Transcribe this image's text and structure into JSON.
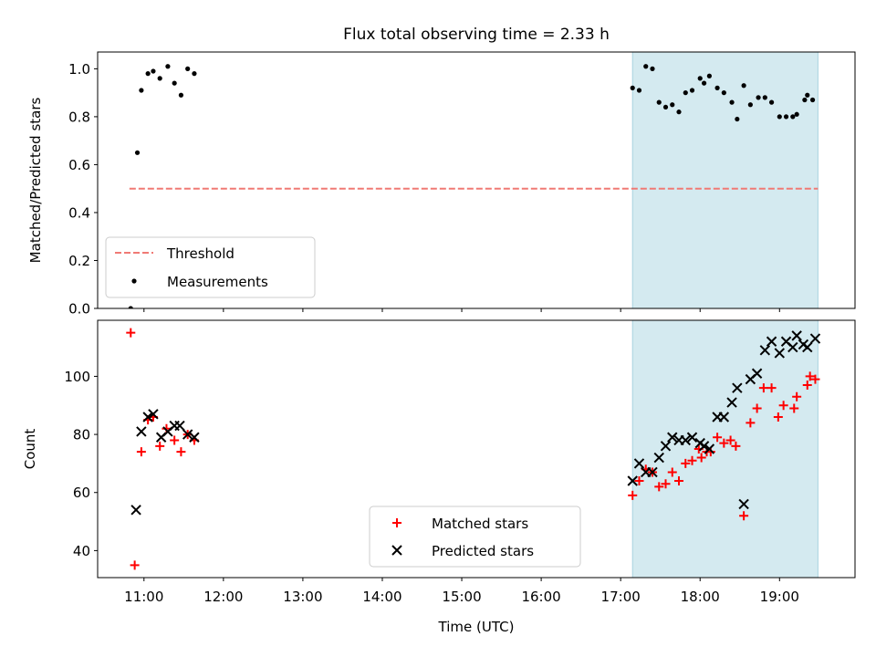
{
  "title": "Flux total observing time = 2.33 h",
  "chart_data": [
    {
      "type": "scatter",
      "ylabel": "Matched/Predicted stars",
      "ylim": [
        0,
        1.07
      ],
      "xlim": [
        "10:25",
        "19:57"
      ],
      "y_ticks": [
        0.0,
        0.2,
        0.4,
        0.6,
        0.8,
        1.0
      ],
      "y_tick_labels": [
        "0.0",
        "0.2",
        "0.4",
        "0.6",
        "0.8",
        "1.0"
      ],
      "highlight_span": {
        "x": [
          "17:09",
          "19:29"
        ],
        "color": "#d4eaf0"
      },
      "threshold": {
        "name": "Threshold",
        "y": 0.5,
        "x": [
          "10:49",
          "19:29"
        ],
        "color": "#f07a75",
        "style": "dashed"
      },
      "legend": {
        "position": "lower left",
        "entries": [
          "Threshold",
          "Measurements"
        ]
      },
      "series": [
        {
          "name": "Measurements",
          "marker": "dot",
          "color": "#000000",
          "points": [
            [
              "10:50",
              0.0
            ],
            [
              "10:55",
              0.65
            ],
            [
              "10:58",
              0.91
            ],
            [
              "11:03",
              0.98
            ],
            [
              "11:07",
              0.99
            ],
            [
              "11:12",
              0.96
            ],
            [
              "11:18",
              1.01
            ],
            [
              "11:23",
              0.94
            ],
            [
              "11:28",
              0.89
            ],
            [
              "11:33",
              1.0
            ],
            [
              "11:38",
              0.98
            ],
            [
              "17:09",
              0.92
            ],
            [
              "17:14",
              0.91
            ],
            [
              "17:19",
              1.01
            ],
            [
              "17:24",
              1.0
            ],
            [
              "17:29",
              0.86
            ],
            [
              "17:34",
              0.84
            ],
            [
              "17:39",
              0.85
            ],
            [
              "17:44",
              0.82
            ],
            [
              "17:49",
              0.9
            ],
            [
              "17:54",
              0.91
            ],
            [
              "18:00",
              0.96
            ],
            [
              "18:03",
              0.94
            ],
            [
              "18:07",
              0.97
            ],
            [
              "18:13",
              0.92
            ],
            [
              "18:18",
              0.9
            ],
            [
              "18:24",
              0.86
            ],
            [
              "18:28",
              0.79
            ],
            [
              "18:33",
              0.93
            ],
            [
              "18:38",
              0.85
            ],
            [
              "18:44",
              0.88
            ],
            [
              "18:49",
              0.88
            ],
            [
              "18:54",
              0.86
            ],
            [
              "19:00",
              0.8
            ],
            [
              "19:05",
              0.8
            ],
            [
              "19:10",
              0.8
            ],
            [
              "19:13",
              0.81
            ],
            [
              "19:19",
              0.87
            ],
            [
              "19:21",
              0.89
            ],
            [
              "19:25",
              0.87
            ]
          ]
        }
      ]
    },
    {
      "type": "scatter",
      "xlabel": "Time (UTC)",
      "ylabel": "Count",
      "ylim": [
        30.7,
        119.3
      ],
      "xlim": [
        "10:25",
        "19:57"
      ],
      "x_ticks": [
        "11:00",
        "12:00",
        "13:00",
        "14:00",
        "15:00",
        "16:00",
        "17:00",
        "18:00",
        "19:00"
      ],
      "y_ticks": [
        40,
        60,
        80,
        100
      ],
      "highlight_span": {
        "x": [
          "17:09",
          "19:29"
        ],
        "color": "#d4eaf0"
      },
      "legend": {
        "position": "lower center",
        "entries": [
          "Matched stars",
          "Predicted stars"
        ]
      },
      "series": [
        {
          "name": "Matched stars",
          "marker": "plus",
          "color": "#ff0000",
          "points": [
            [
              "10:50",
              115
            ],
            [
              "10:53",
              35
            ],
            [
              "10:58",
              74
            ],
            [
              "11:03",
              85
            ],
            [
              "11:07",
              86
            ],
            [
              "11:12",
              76
            ],
            [
              "11:17",
              82
            ],
            [
              "11:23",
              78
            ],
            [
              "11:28",
              74
            ],
            [
              "11:33",
              80
            ],
            [
              "11:38",
              78
            ],
            [
              "17:09",
              59
            ],
            [
              "17:14",
              64
            ],
            [
              "17:19",
              68
            ],
            [
              "17:24",
              67
            ],
            [
              "17:29",
              62
            ],
            [
              "17:34",
              63
            ],
            [
              "17:39",
              67
            ],
            [
              "17:44",
              64
            ],
            [
              "17:49",
              70
            ],
            [
              "17:54",
              71
            ],
            [
              "17:59",
              75
            ],
            [
              "18:01",
              72
            ],
            [
              "18:05",
              74
            ],
            [
              "18:08",
              74
            ],
            [
              "18:13",
              79
            ],
            [
              "18:18",
              77
            ],
            [
              "18:23",
              78
            ],
            [
              "18:27",
              76
            ],
            [
              "18:33",
              52
            ],
            [
              "18:38",
              84
            ],
            [
              "18:43",
              89
            ],
            [
              "18:48",
              96
            ],
            [
              "18:54",
              96
            ],
            [
              "18:59",
              86
            ],
            [
              "19:03",
              90
            ],
            [
              "19:11",
              89
            ],
            [
              "19:13",
              93
            ],
            [
              "19:21",
              97
            ],
            [
              "19:23",
              100
            ],
            [
              "19:27",
              99
            ]
          ]
        },
        {
          "name": "Predicted stars",
          "marker": "x",
          "color": "#000000",
          "points": [
            [
              "10:54",
              54
            ],
            [
              "10:58",
              81
            ],
            [
              "11:03",
              86
            ],
            [
              "11:07",
              87
            ],
            [
              "11:13",
              79
            ],
            [
              "11:18",
              81
            ],
            [
              "11:23",
              83
            ],
            [
              "11:27",
              83
            ],
            [
              "11:33",
              80
            ],
            [
              "11:38",
              79
            ],
            [
              "17:09",
              64
            ],
            [
              "17:14",
              70
            ],
            [
              "17:19",
              67
            ],
            [
              "17:24",
              67
            ],
            [
              "17:29",
              72
            ],
            [
              "17:34",
              76
            ],
            [
              "17:39",
              79
            ],
            [
              "17:44",
              78
            ],
            [
              "17:49",
              78
            ],
            [
              "17:54",
              79
            ],
            [
              "18:00",
              77
            ],
            [
              "18:03",
              76
            ],
            [
              "18:07",
              75
            ],
            [
              "18:13",
              86
            ],
            [
              "18:18",
              86
            ],
            [
              "18:24",
              91
            ],
            [
              "18:28",
              96
            ],
            [
              "18:33",
              56
            ],
            [
              "18:38",
              99
            ],
            [
              "18:43",
              101
            ],
            [
              "18:49",
              109
            ],
            [
              "18:54",
              112
            ],
            [
              "19:00",
              108
            ],
            [
              "19:05",
              112
            ],
            [
              "19:10",
              110
            ],
            [
              "19:13",
              114
            ],
            [
              "19:18",
              111
            ],
            [
              "19:21",
              110
            ],
            [
              "19:27",
              113
            ]
          ]
        }
      ]
    }
  ]
}
